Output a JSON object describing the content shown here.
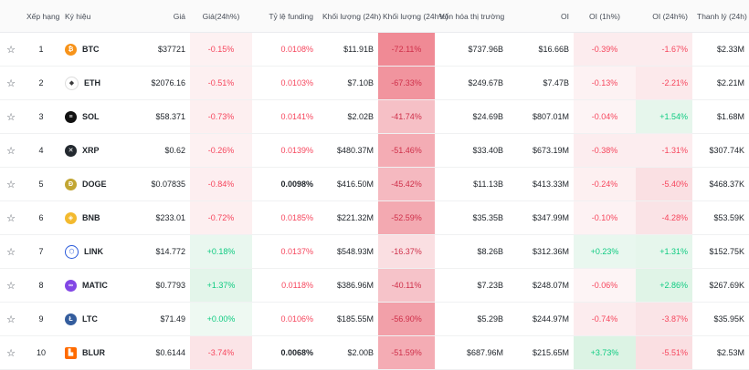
{
  "headers": {
    "rank": "Xếp hạng",
    "symbol": "Ký hiệu",
    "price": "Giá",
    "price_change": "Giá(24h%)",
    "funding": "Tỷ lệ funding",
    "volume": "Khối lượng (24h)",
    "volume_change": "Khối lượng (24h%)",
    "mcap": "Vốn hóa thị trường",
    "oi": "OI",
    "oi_1h": "OI (1h%)",
    "oi_24h": "OI (24h%)",
    "liq": "Thanh lý (24h)"
  },
  "rows": [
    {
      "star": "☆",
      "rank": "1",
      "sym": "BTC",
      "icon": "bitcoin-icon",
      "logo_color": "#f7931a",
      "logo_glyph": "₿",
      "price": "$37721",
      "price_chg": "-0.15%",
      "pc_dir": "neg",
      "pc_bg": "#fdf1f2",
      "funding": "0.0108%",
      "f_dir": "neg",
      "vol": "$11.91B",
      "vol_chg": "-72.11%",
      "vc_bg": "#f08a95",
      "mcap": "$737.96B",
      "oi": "$16.66B",
      "oi1h": "-0.39%",
      "o1_dir": "neg",
      "o1_bg": "#fcecee",
      "oi24h": "-1.67%",
      "o24_dir": "neg",
      "o24_bg": "#fcecee",
      "liq": "$2.33M"
    },
    {
      "star": "☆",
      "rank": "2",
      "sym": "ETH",
      "icon": "ethereum-icon",
      "logo_color": "#ffffff",
      "logo_glyph": "◆",
      "price": "$2076.16",
      "price_chg": "-0.51%",
      "pc_dir": "neg",
      "pc_bg": "#fdf0f1",
      "funding": "0.0103%",
      "f_dir": "neg",
      "vol": "$7.10B",
      "vol_chg": "-67.33%",
      "vc_bg": "#f1949e",
      "mcap": "$249.67B",
      "oi": "$7.47B",
      "oi1h": "-0.13%",
      "o1_dir": "neg",
      "o1_bg": "#fdf2f3",
      "oi24h": "-2.21%",
      "o24_dir": "neg",
      "o24_bg": "#fce9eb",
      "liq": "$2.21M"
    },
    {
      "star": "☆",
      "rank": "3",
      "sym": "SOL",
      "icon": "solana-icon",
      "logo_color": "#111111",
      "logo_glyph": "≡",
      "price": "$58.371",
      "price_chg": "-0.73%",
      "pc_dir": "neg",
      "pc_bg": "#fdeff0",
      "funding": "0.0141%",
      "f_dir": "neg",
      "vol": "$2.02B",
      "vol_chg": "-41.74%",
      "vc_bg": "#f6c0c6",
      "mcap": "$24.69B",
      "oi": "$807.01M",
      "oi1h": "-0.04%",
      "o1_dir": "neg",
      "o1_bg": "#fdf4f5",
      "oi24h": "+1.54%",
      "o24_dir": "pos",
      "o24_bg": "#e6f6ec",
      "liq": "$1.68M"
    },
    {
      "star": "☆",
      "rank": "4",
      "sym": "XRP",
      "icon": "xrp-icon",
      "logo_color": "#23292f",
      "logo_glyph": "✕",
      "price": "$0.62",
      "price_chg": "-0.26%",
      "pc_dir": "neg",
      "pc_bg": "#fdf1f2",
      "funding": "0.0139%",
      "f_dir": "neg",
      "vol": "$480.37M",
      "vol_chg": "-51.46%",
      "vc_bg": "#f4acb4",
      "mcap": "$33.40B",
      "oi": "$673.19M",
      "oi1h": "-0.38%",
      "o1_dir": "neg",
      "o1_bg": "#fcedef",
      "oi24h": "-1.31%",
      "o24_dir": "neg",
      "o24_bg": "#fcedef",
      "liq": "$307.74K"
    },
    {
      "star": "☆",
      "rank": "5",
      "sym": "DOGE",
      "icon": "dogecoin-icon",
      "logo_color": "#c2a633",
      "logo_glyph": "Ð",
      "price": "$0.07835",
      "price_chg": "-0.84%",
      "pc_dir": "neg",
      "pc_bg": "#fdeef0",
      "funding": "0.0098%",
      "f_dir": "neu",
      "vol": "$416.50M",
      "vol_chg": "-45.42%",
      "vc_bg": "#f5b9c0",
      "mcap": "$11.13B",
      "oi": "$413.33M",
      "oi1h": "-0.24%",
      "o1_dir": "neg",
      "o1_bg": "#fdf0f1",
      "oi24h": "-5.40%",
      "o24_dir": "neg",
      "o24_bg": "#fae0e3",
      "liq": "$468.37K"
    },
    {
      "star": "☆",
      "rank": "6",
      "sym": "BNB",
      "icon": "bnb-icon",
      "logo_color": "#f3ba2f",
      "logo_glyph": "◈",
      "price": "$233.01",
      "price_chg": "-0.72%",
      "pc_dir": "neg",
      "pc_bg": "#fdeff0",
      "funding": "0.0185%",
      "f_dir": "neg",
      "vol": "$221.32M",
      "vol_chg": "-52.59%",
      "vc_bg": "#f3a9b1",
      "mcap": "$35.35B",
      "oi": "$347.99M",
      "oi1h": "-0.10%",
      "o1_dir": "neg",
      "o1_bg": "#fdf2f3",
      "oi24h": "-4.28%",
      "o24_dir": "neg",
      "o24_bg": "#fae3e6",
      "liq": "$53.59K"
    },
    {
      "star": "☆",
      "rank": "7",
      "sym": "LINK",
      "icon": "chainlink-icon",
      "logo_color": "#2a5ada",
      "logo_glyph": "⬡",
      "price": "$14.772",
      "price_chg": "+0.18%",
      "pc_dir": "pos",
      "pc_bg": "#e9f7ef",
      "funding": "0.0137%",
      "f_dir": "neg",
      "vol": "$548.93M",
      "vol_chg": "-16.37%",
      "vc_bg": "#fadfe2",
      "mcap": "$8.26B",
      "oi": "$312.36M",
      "oi1h": "+0.23%",
      "o1_dir": "pos",
      "o1_bg": "#e9f7ef",
      "oi24h": "+1.31%",
      "o24_dir": "pos",
      "o24_bg": "#e6f6ec",
      "liq": "$152.75K"
    },
    {
      "star": "☆",
      "rank": "8",
      "sym": "MATIC",
      "icon": "polygon-icon",
      "logo_color": "#8247e5",
      "logo_glyph": "∞",
      "price": "$0.7793",
      "price_chg": "+1.37%",
      "pc_dir": "pos",
      "pc_bg": "#e3f5ea",
      "funding": "0.0118%",
      "f_dir": "neg",
      "vol": "$386.96M",
      "vol_chg": "-40.11%",
      "vc_bg": "#f6c3c9",
      "mcap": "$7.23B",
      "oi": "$248.07M",
      "oi1h": "-0.06%",
      "o1_dir": "neg",
      "o1_bg": "#fdf4f5",
      "oi24h": "+2.86%",
      "o24_dir": "pos",
      "o24_bg": "#e0f4e7",
      "liq": "$267.69K"
    },
    {
      "star": "☆",
      "rank": "9",
      "sym": "LTC",
      "icon": "litecoin-icon",
      "logo_color": "#345d9d",
      "logo_glyph": "Ł",
      "price": "$71.49",
      "price_chg": "+0.00%",
      "pc_dir": "pos",
      "pc_bg": "#eef9f2",
      "funding": "0.0106%",
      "f_dir": "neg",
      "vol": "$185.55M",
      "vol_chg": "-56.90%",
      "vc_bg": "#f2a0a9",
      "mcap": "$5.29B",
      "oi": "$244.97M",
      "oi1h": "-0.74%",
      "o1_dir": "neg",
      "o1_bg": "#fcecee",
      "oi24h": "-3.87%",
      "o24_dir": "neg",
      "o24_bg": "#fae4e7",
      "liq": "$35.95K"
    },
    {
      "star": "☆",
      "rank": "10",
      "sym": "BLUR",
      "icon": "blur-icon",
      "logo_color": "#ff6b00",
      "logo_glyph": "▙",
      "price": "$0.6144",
      "price_chg": "-3.74%",
      "pc_dir": "neg",
      "pc_bg": "#fbe4e7",
      "funding": "0.0068%",
      "f_dir": "neu",
      "vol": "$2.00B",
      "vol_chg": "-51.59%",
      "vc_bg": "#f4acb4",
      "mcap": "$687.96M",
      "oi": "$215.65M",
      "oi1h": "+3.73%",
      "o1_dir": "pos",
      "o1_bg": "#dcf3e4",
      "oi24h": "-5.51%",
      "o24_dir": "neg",
      "o24_bg": "#fadfe2",
      "liq": "$2.53M"
    }
  ]
}
